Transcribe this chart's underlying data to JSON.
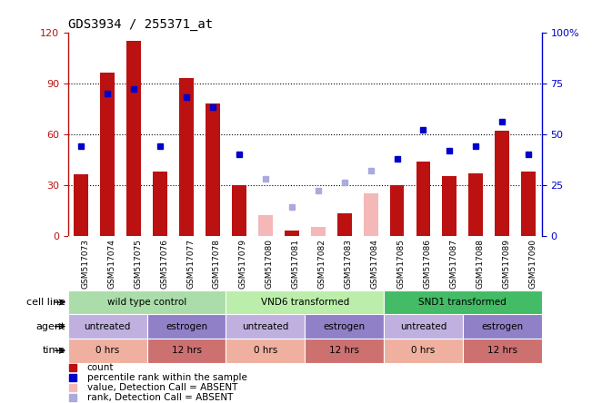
{
  "title": "GDS3934 / 255371_at",
  "samples": [
    "GSM517073",
    "GSM517074",
    "GSM517075",
    "GSM517076",
    "GSM517077",
    "GSM517078",
    "GSM517079",
    "GSM517080",
    "GSM517081",
    "GSM517082",
    "GSM517083",
    "GSM517084",
    "GSM517085",
    "GSM517086",
    "GSM517087",
    "GSM517088",
    "GSM517089",
    "GSM517090"
  ],
  "count_present": [
    36,
    96,
    115,
    38,
    93,
    78,
    30,
    null,
    3,
    null,
    13,
    null,
    30,
    44,
    35,
    37,
    62,
    38
  ],
  "count_absent": [
    null,
    null,
    null,
    null,
    null,
    null,
    null,
    12,
    null,
    5,
    null,
    25,
    null,
    null,
    null,
    null,
    null,
    null
  ],
  "rank_present": [
    44,
    70,
    72,
    44,
    68,
    63,
    40,
    null,
    null,
    null,
    null,
    null,
    38,
    52,
    42,
    44,
    56,
    40
  ],
  "rank_absent": [
    null,
    null,
    null,
    null,
    null,
    null,
    null,
    28,
    14,
    22,
    26,
    32,
    null,
    null,
    null,
    null,
    null,
    null
  ],
  "cell_line_groups": [
    {
      "label": "wild type control",
      "start": 0,
      "end": 6,
      "color": "#aaddaa"
    },
    {
      "label": "VND6 transformed",
      "start": 6,
      "end": 12,
      "color": "#bbeeaa"
    },
    {
      "label": "SND1 transformed",
      "start": 12,
      "end": 18,
      "color": "#44bb66"
    }
  ],
  "agent_groups": [
    {
      "label": "untreated",
      "start": 0,
      "end": 3,
      "color": "#c0b0e0"
    },
    {
      "label": "estrogen",
      "start": 3,
      "end": 6,
      "color": "#9080c8"
    },
    {
      "label": "untreated",
      "start": 6,
      "end": 9,
      "color": "#c0b0e0"
    },
    {
      "label": "estrogen",
      "start": 9,
      "end": 12,
      "color": "#9080c8"
    },
    {
      "label": "untreated",
      "start": 12,
      "end": 15,
      "color": "#c0b0e0"
    },
    {
      "label": "estrogen",
      "start": 15,
      "end": 18,
      "color": "#9080c8"
    }
  ],
  "time_groups": [
    {
      "label": "0 hrs",
      "start": 0,
      "end": 3,
      "color": "#f0b0a0"
    },
    {
      "label": "12 hrs",
      "start": 3,
      "end": 6,
      "color": "#cc7070"
    },
    {
      "label": "0 hrs",
      "start": 6,
      "end": 9,
      "color": "#f0b0a0"
    },
    {
      "label": "12 hrs",
      "start": 9,
      "end": 12,
      "color": "#cc7070"
    },
    {
      "label": "0 hrs",
      "start": 12,
      "end": 15,
      "color": "#f0b0a0"
    },
    {
      "label": "12 hrs",
      "start": 15,
      "end": 18,
      "color": "#cc7070"
    }
  ],
  "ylim_left": [
    0,
    120
  ],
  "ylim_right": [
    0,
    100
  ],
  "yticks_left": [
    0,
    30,
    60,
    90,
    120
  ],
  "yticks_right": [
    0,
    25,
    50,
    75,
    100
  ],
  "bar_color": "#bb1111",
  "absent_bar_color": "#f4b8b8",
  "rank_color": "#0000cc",
  "rank_absent_color": "#aaaadd",
  "tick_bg_color": "#cccccc"
}
